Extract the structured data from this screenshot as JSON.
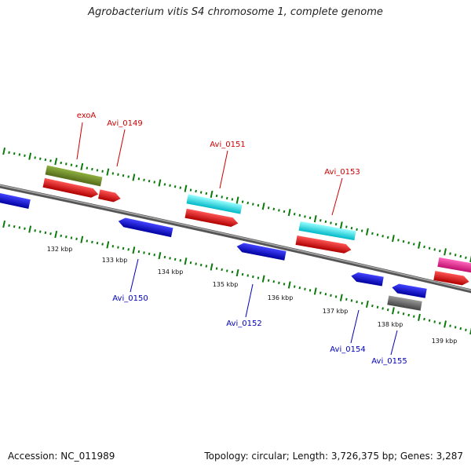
{
  "title": "Agrobacterium vitis S4 chromosome 1, complete genome",
  "footer": {
    "accession": "Accession: NC_011989",
    "summary": "Topology: circular; Length: 3,726,375 bp; Genes: 3,287"
  },
  "ruler": {
    "ticks": [
      "132 kbp",
      "133 kbp",
      "134 kbp",
      "135 kbp",
      "136 kbp",
      "137 kbp",
      "138 kbp",
      "139 kbp"
    ]
  },
  "labels": {
    "top": [
      "exoA",
      "Avi_0149",
      "Avi_0151",
      "Avi_0153"
    ],
    "bottom": [
      "Avi_0150",
      "Avi_0152",
      "Avi_0154",
      "Avi_0155"
    ]
  },
  "colors": {
    "forward_cds": "#ee0000",
    "reverse_cds": "#1111dd",
    "olive_feature": "#6b8e23",
    "cyan_feature": "#00e5ee",
    "gray_feature": "#666666",
    "magenta_feature": "#ee1493",
    "top_label": "#cc0000",
    "bottom_label": "#0000bb",
    "tick": "#0a7a0a"
  }
}
